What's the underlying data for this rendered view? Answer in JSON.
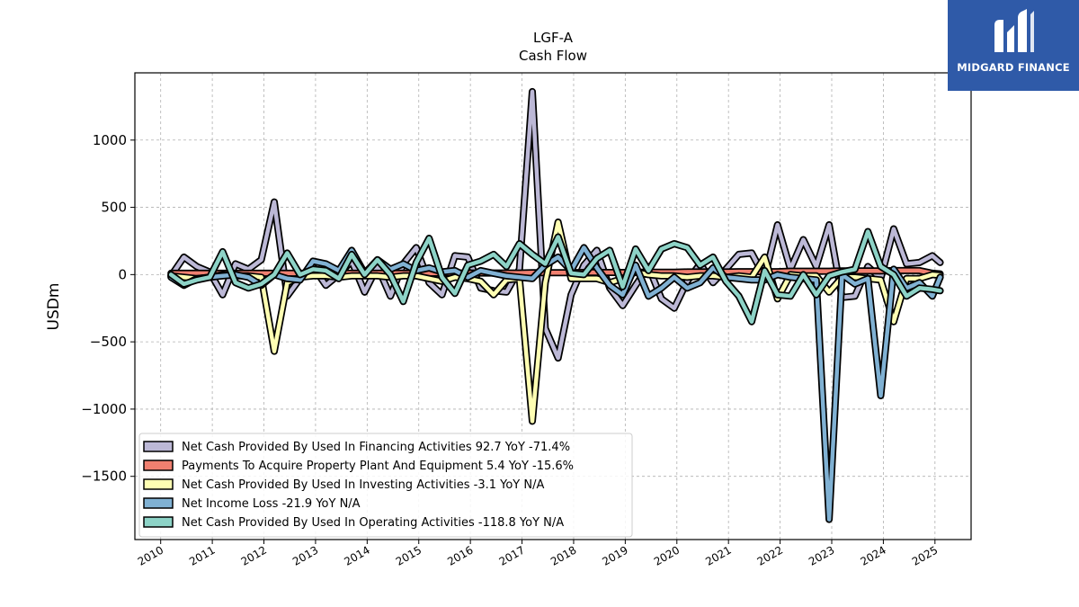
{
  "chart_data": {
    "type": "line",
    "title": "LGF-A",
    "subtitle": "Cash Flow",
    "xlabel": "",
    "ylabel": "USDm",
    "xlim": [
      2009.5,
      2025.7
    ],
    "ylim": [
      -1970,
      1500
    ],
    "x_ticks": [
      "2010",
      "2011",
      "2012",
      "2013",
      "2014",
      "2015",
      "2016",
      "2017",
      "2018",
      "2019",
      "2020",
      "2021",
      "2022",
      "2023",
      "2024",
      "2025"
    ],
    "y_ticks": [
      1000,
      500,
      0,
      -500,
      -1000,
      -1500
    ],
    "y_tick_labels": [
      "1000",
      "500",
      "0",
      "−500",
      "−1000",
      "−1500"
    ],
    "grid": true,
    "legend_position": "lower-left",
    "x": [
      2010.2,
      2010.45,
      2010.7,
      2010.95,
      2011.2,
      2011.45,
      2011.7,
      2011.95,
      2012.2,
      2012.45,
      2012.7,
      2012.95,
      2013.2,
      2013.45,
      2013.7,
      2013.95,
      2014.2,
      2014.45,
      2014.7,
      2014.95,
      2015.2,
      2015.45,
      2015.7,
      2015.95,
      2016.2,
      2016.45,
      2016.7,
      2016.95,
      2017.2,
      2017.45,
      2017.7,
      2017.95,
      2018.2,
      2018.45,
      2018.7,
      2018.95,
      2019.2,
      2019.45,
      2019.7,
      2019.95,
      2020.2,
      2020.45,
      2020.7,
      2020.95,
      2021.2,
      2021.45,
      2021.7,
      2021.95,
      2022.2,
      2022.45,
      2022.7,
      2022.95,
      2023.2,
      2023.45,
      2023.7,
      2023.95,
      2024.2,
      2024.45,
      2024.7,
      2024.95,
      2025.1
    ],
    "series": [
      {
        "name": "Net Cash Provided By Used In Financing Activities",
        "legend_label": "Net Cash Provided By Used In Financing Activities  92.7 YoY -71.4%",
        "color": "#bcb8d6",
        "values": [
          -10,
          130,
          60,
          20,
          -150,
          80,
          40,
          110,
          540,
          -160,
          -30,
          60,
          -80,
          0,
          100,
          -130,
          60,
          -160,
          80,
          200,
          -60,
          -150,
          140,
          130,
          -100,
          -120,
          -130,
          40,
          1360,
          -400,
          -620,
          -150,
          70,
          180,
          -100,
          -230,
          -80,
          60,
          -180,
          -250,
          -50,
          80,
          -60,
          40,
          150,
          160,
          -20,
          370,
          40,
          260,
          60,
          370,
          -170,
          -160,
          60,
          -30,
          340,
          80,
          90,
          140,
          90
        ]
      },
      {
        "name": "Payments To Acquire Property Plant And Equipment",
        "legend_label": "Payments To Acquire Property Plant And Equipment  5.4 YoY -15.6%",
        "color": "#f08070",
        "values": [
          10,
          10,
          10,
          10,
          10,
          10,
          10,
          10,
          10,
          10,
          10,
          10,
          10,
          10,
          10,
          10,
          10,
          10,
          10,
          10,
          10,
          12,
          12,
          12,
          12,
          12,
          12,
          12,
          14,
          14,
          14,
          14,
          16,
          16,
          16,
          16,
          18,
          18,
          18,
          18,
          20,
          20,
          20,
          20,
          22,
          22,
          22,
          22,
          25,
          25,
          25,
          25,
          28,
          28,
          28,
          28,
          30,
          30,
          30,
          10,
          5
        ]
      },
      {
        "name": "Net Cash Provided By Used In Investing Activities",
        "legend_label": "Net Cash Provided By Used In Investing Activities  -3.1 YoY N/A",
        "color": "#ffffb3",
        "values": [
          -10,
          -20,
          -30,
          -20,
          0,
          -10,
          -10,
          -20,
          -570,
          -60,
          -20,
          -10,
          -10,
          -20,
          -10,
          -10,
          -10,
          -20,
          -10,
          -10,
          -30,
          -50,
          -20,
          -30,
          -50,
          -150,
          -40,
          -30,
          -1090,
          -60,
          390,
          -30,
          -30,
          -30,
          -60,
          -30,
          20,
          0,
          -10,
          -10,
          -20,
          -10,
          -10,
          -20,
          -10,
          -20,
          130,
          -180,
          0,
          -10,
          -10,
          -130,
          -20,
          -20,
          -30,
          -40,
          -350,
          -30,
          -30,
          0,
          -5
        ]
      },
      {
        "name": "Net Income Loss",
        "legend_label": "Net Income Loss  -21.9 YoY N/A",
        "color": "#80b1d3",
        "values": [
          -20,
          -80,
          -30,
          -20,
          -10,
          0,
          -20,
          -80,
          0,
          -30,
          -40,
          100,
          80,
          30,
          180,
          10,
          110,
          40,
          80,
          30,
          50,
          20,
          30,
          -20,
          30,
          10,
          -10,
          -20,
          -30,
          70,
          130,
          30,
          200,
          50,
          -80,
          -150,
          70,
          -160,
          -100,
          -20,
          -100,
          -60,
          50,
          -20,
          -30,
          -40,
          -40,
          0,
          -20,
          -30,
          -40,
          -1820,
          0,
          -70,
          -30,
          -900,
          40,
          -100,
          -60,
          -160,
          -20
        ]
      },
      {
        "name": "Net Cash Provided By Used In Operating Activities",
        "legend_label": "Net Cash Provided By Used In Operating Activities  -118.8 YoY N/A",
        "color": "#8dd3c7",
        "values": [
          0,
          -70,
          -40,
          -20,
          170,
          -60,
          -100,
          -70,
          0,
          160,
          0,
          40,
          30,
          -30,
          150,
          0,
          110,
          0,
          -200,
          90,
          270,
          -20,
          -140,
          70,
          100,
          150,
          60,
          230,
          150,
          80,
          280,
          10,
          0,
          120,
          180,
          -90,
          190,
          30,
          190,
          230,
          200,
          70,
          130,
          -50,
          -160,
          -350,
          30,
          -150,
          -160,
          0,
          -150,
          -10,
          20,
          40,
          320,
          60,
          0,
          -160,
          -100,
          -110,
          -120
        ]
      }
    ]
  },
  "brand": {
    "name": "MIDGARD FINANCE",
    "color": "#2f5aa8",
    "icon": "midgard-mark-icon"
  }
}
